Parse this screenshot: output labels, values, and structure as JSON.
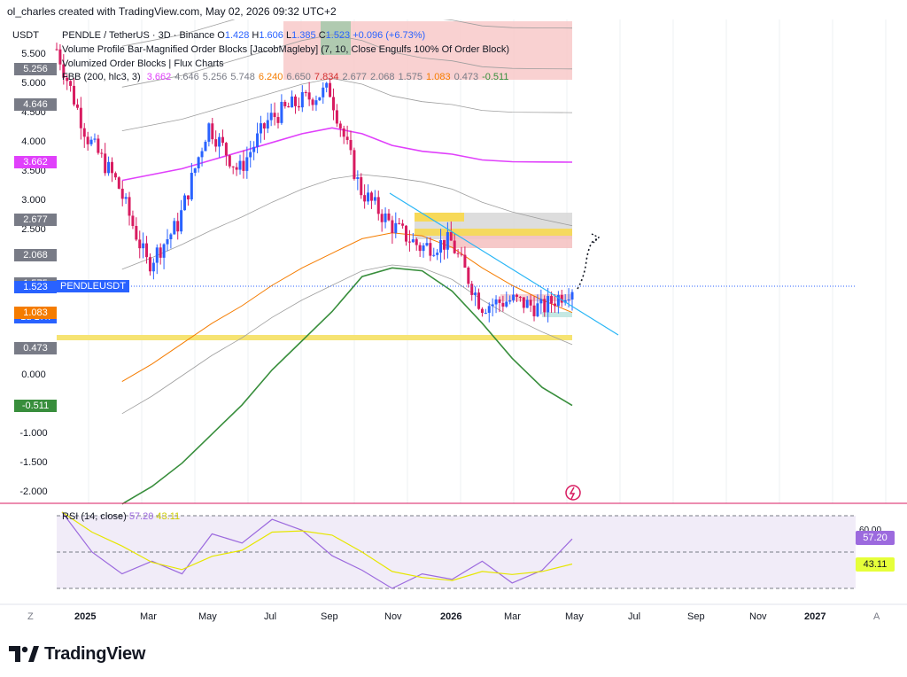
{
  "header": {
    "credit": "ol_charles created with TradingView.com, May 02, 2026 09:32 UTC+2"
  },
  "legend": {
    "currency": "USDT",
    "symbol_line": "PENDLE / TetherUS · 3D · Binance",
    "ohlc": {
      "o_label": "O",
      "o": "1.428",
      "h_label": "H",
      "h": "1.606",
      "l_label": "L",
      "l": "1.385",
      "c_label": "C",
      "c": "1.523",
      "change": "+0.096 (+6.73%)"
    },
    "indicator1": "Volume Profile Bar-Magnified Order Blocks [JacobMagleby] (7, 10, Close Engulfs 100% Of Order Block)",
    "indicator2": "Volumized Order Blocks | Flux Charts",
    "indicator3_name": "FBB (200, hlc3, 3)",
    "indicator3_values": [
      "3.662",
      "4.646",
      "5.256",
      "5.748",
      "6.240",
      "6.650",
      "7.834",
      "2.677",
      "2.068",
      "1.575",
      "1.083",
      "0.473",
      "-0.511"
    ]
  },
  "price_axis": {
    "ticks": [
      "5.500",
      "5.000",
      "4.500",
      "4.000",
      "3.500",
      "3.000",
      "2.500",
      "1.000",
      "0.000",
      "-1.000",
      "-1.500",
      "-2.000"
    ],
    "tags": [
      {
        "value": "5.256",
        "color": "#787b86"
      },
      {
        "value": "4.646",
        "color": "#787b86"
      },
      {
        "value": "3.662",
        "color": "#e040fb"
      },
      {
        "value": "2.677",
        "color": "#787b86"
      },
      {
        "value": "2.068",
        "color": "#787b86"
      },
      {
        "value": "1.575",
        "color": "#787b86"
      },
      {
        "value": "1.523",
        "color": "#2962ff"
      },
      {
        "value": "1d 17h",
        "color": "#2962ff"
      },
      {
        "value": "1.083",
        "color": "#f57c00"
      },
      {
        "value": "0.473",
        "color": "#787b86"
      },
      {
        "value": "-0.511",
        "color": "#388e3c"
      }
    ],
    "symbol_tag": "PENDLEUSDT"
  },
  "rsi": {
    "label": "RSI (14, close)",
    "value": "57.20",
    "ma_value": "43.11",
    "level_top": "60.00",
    "level_bottom": "40.00"
  },
  "time_axis": [
    "2025",
    "Mar",
    "May",
    "Jul",
    "Sep",
    "Nov",
    "2026",
    "Mar",
    "May",
    "Jul",
    "Sep",
    "Nov",
    "2027"
  ],
  "time_axis_bold": [
    "2025",
    "2026",
    "2027"
  ],
  "buttons": {
    "left": "Z",
    "right": "A"
  },
  "brand": "TradingView",
  "colors": {
    "up": "#2962ff",
    "down": "#d81b60",
    "basis": "#e040fb",
    "lower1": "#f57c00",
    "lower3": "#388e3c",
    "rsi": "#9c6ade",
    "rsi_ma": "#e6e600"
  },
  "chart_data": {
    "type": "line",
    "title": "PENDLE / TetherUS · 3D · Binance",
    "ylim": [
      -2.2,
      5.9
    ],
    "series": [
      {
        "name": "PENDLE / TetherUS",
        "x": [
          "2024-12",
          "2025-01",
          "2025-02",
          "2025-03",
          "2025-04",
          "2025-05",
          "2025-06",
          "2025-07",
          "2025-08",
          "2025-09",
          "2025-10",
          "2025-11",
          "2025-12",
          "2026-01",
          "2026-02",
          "2026-03",
          "2026-04",
          "2026-05"
        ],
        "values": [
          5.6,
          4.1,
          3.3,
          1.9,
          2.6,
          4.3,
          3.5,
          4.4,
          4.7,
          4.9,
          3.2,
          2.6,
          2.2,
          2.3,
          1.2,
          1.3,
          1.15,
          1.523
        ]
      },
      {
        "name": "FBB basis",
        "values": [
          null,
          null,
          3.35,
          3.45,
          3.55,
          3.7,
          3.85,
          4.0,
          4.15,
          4.25,
          4.15,
          3.95,
          3.85,
          3.8,
          3.7,
          3.67,
          3.665,
          3.662
        ]
      },
      {
        "name": "FBB lower 1",
        "values": [
          null,
          null,
          -0.1,
          0.2,
          0.55,
          0.9,
          1.2,
          1.55,
          1.85,
          2.1,
          2.35,
          2.45,
          2.4,
          2.2,
          1.85,
          1.55,
          1.3,
          1.083
        ]
      },
      {
        "name": "FBB lower 3",
        "values": [
          null,
          null,
          -2.2,
          -1.9,
          -1.5,
          -1.0,
          -0.5,
          0.1,
          0.6,
          1.1,
          1.7,
          1.85,
          1.8,
          1.45,
          0.9,
          0.3,
          -0.2,
          -0.511
        ]
      }
    ],
    "rsi_series": {
      "name": "RSI (14, close)",
      "values": [
        72,
        50,
        38,
        45,
        38,
        60,
        55,
        68,
        62,
        48,
        40,
        30,
        38,
        35,
        45,
        33,
        40,
        57.2
      ]
    }
  }
}
